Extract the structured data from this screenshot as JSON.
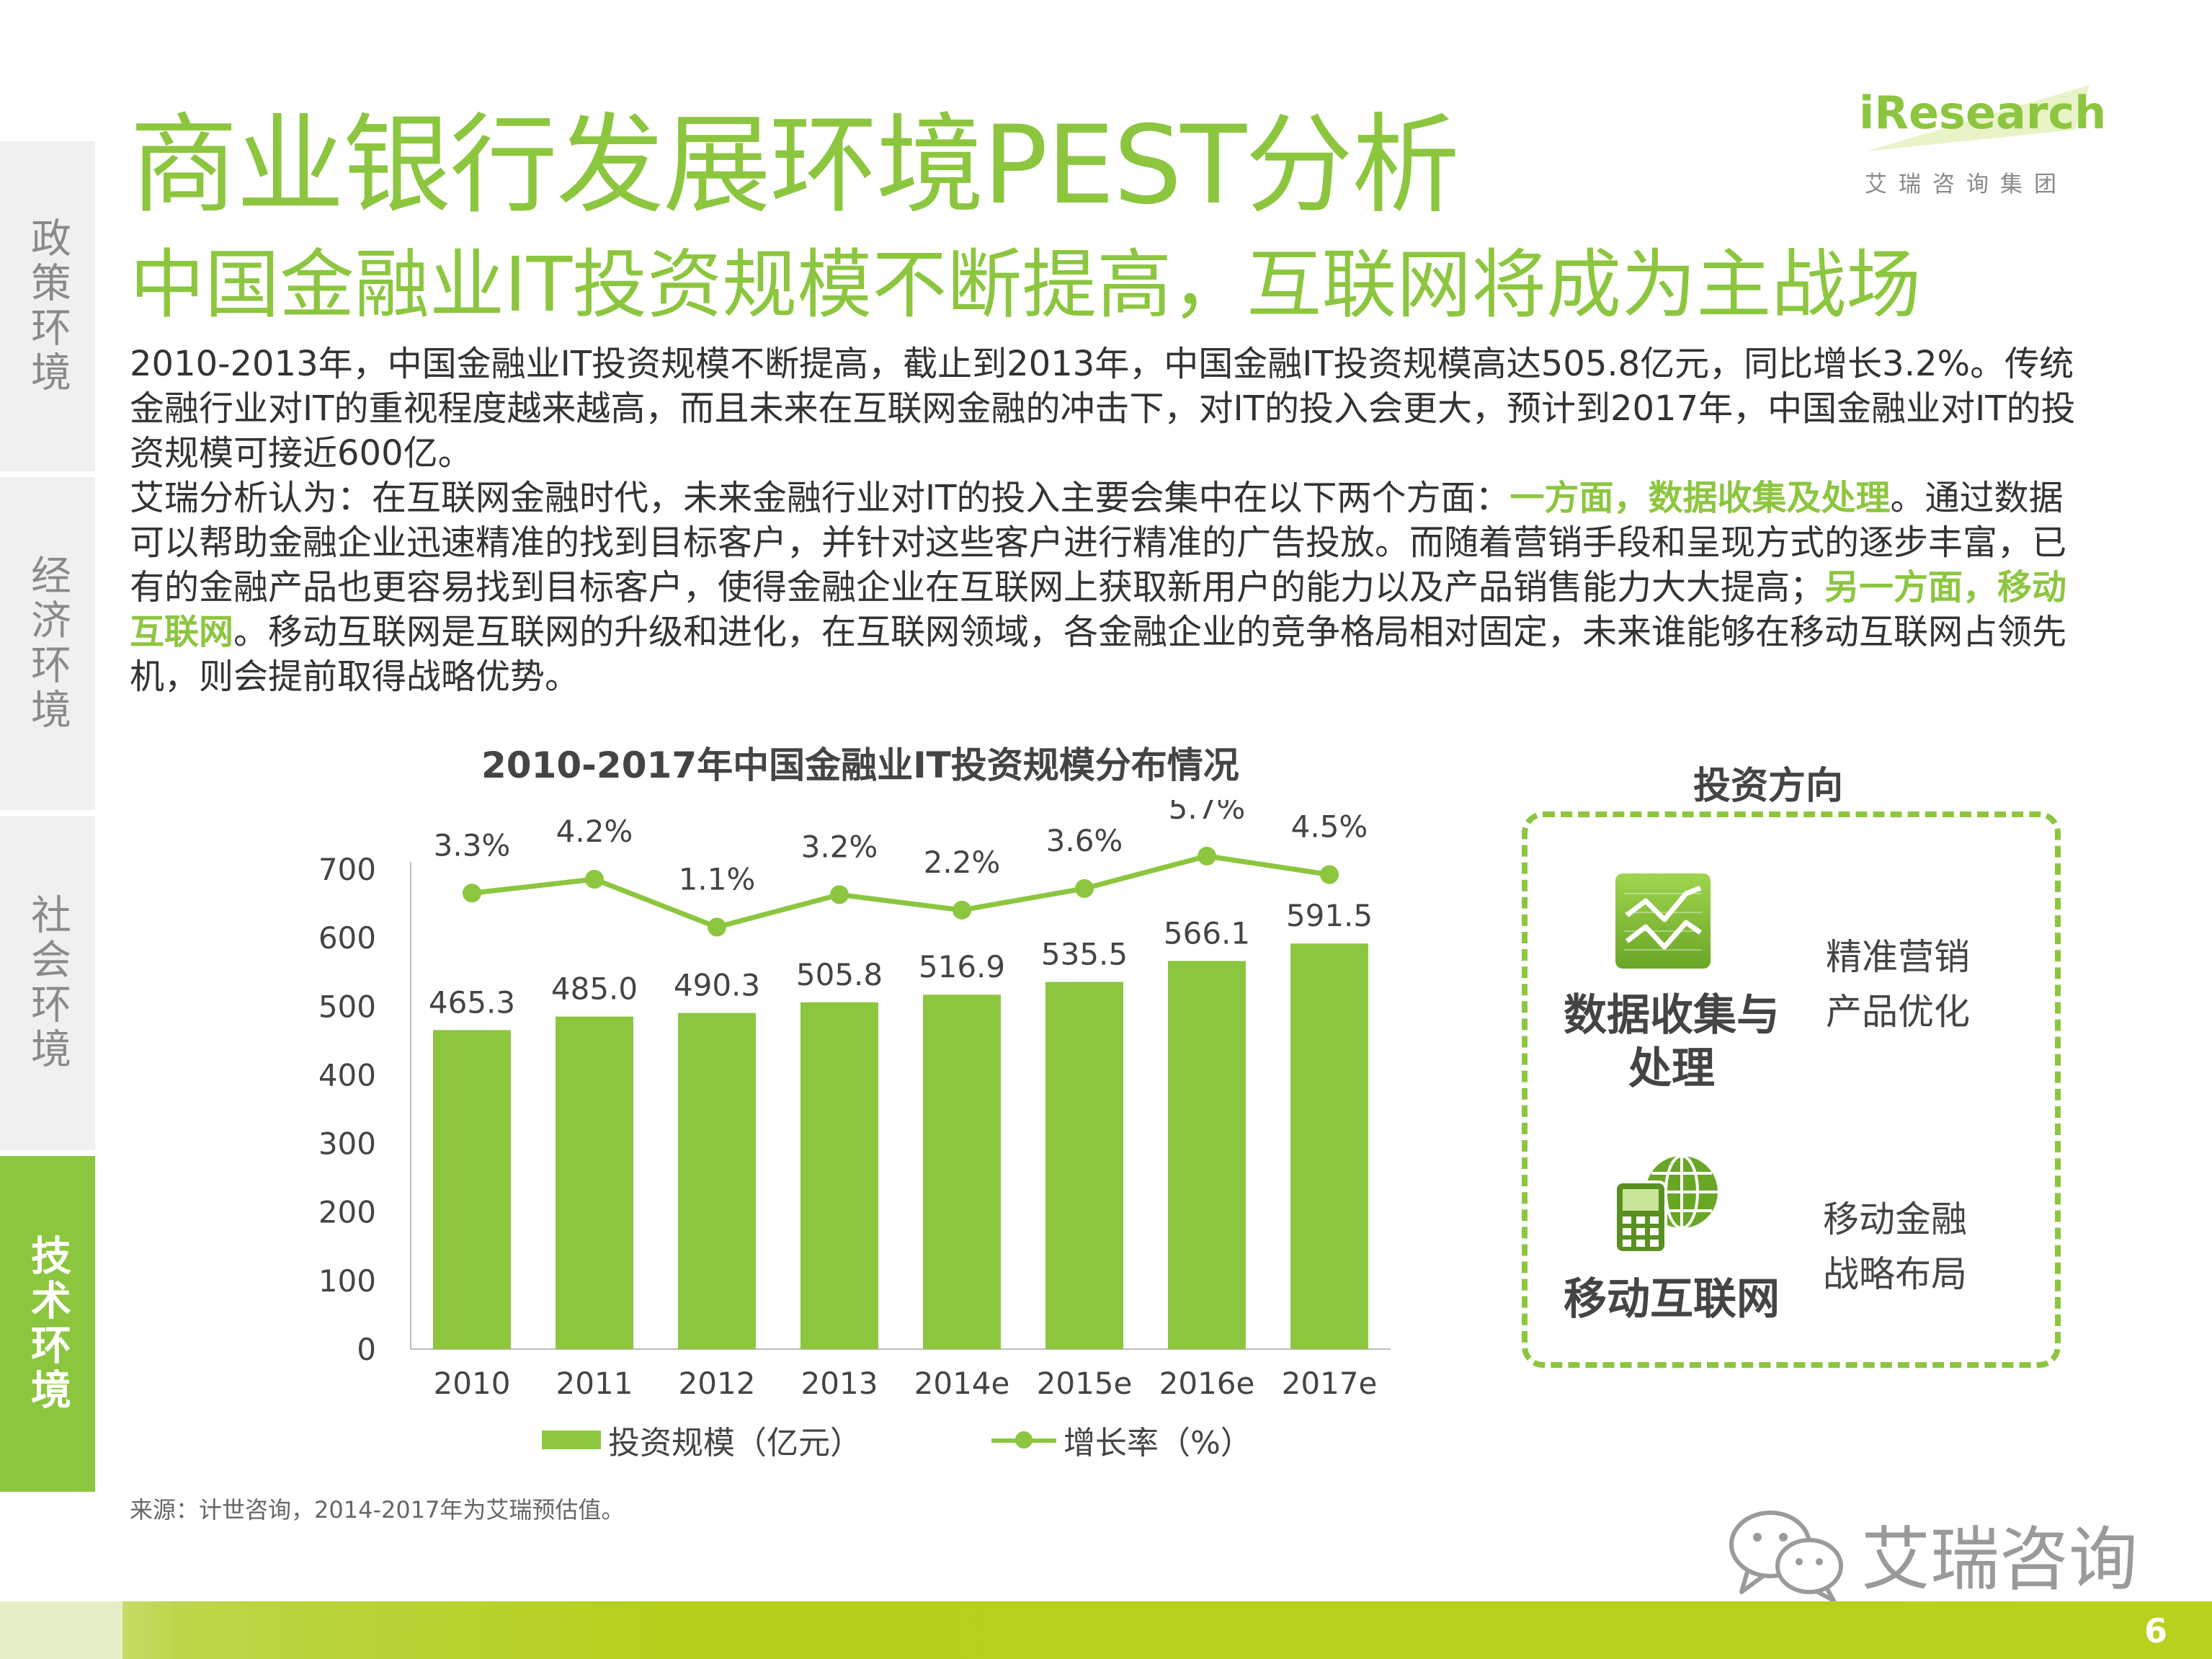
{
  "side_tabs": [
    {
      "label": "政策环境"
    },
    {
      "label": "经济环境"
    },
    {
      "label": "社会环境"
    },
    {
      "label": "技术环境"
    }
  ],
  "header": {
    "title": "商业银行发展环境PEST分析",
    "subtitle": "中国金融业IT投资规模不断提高，互联网将成为主战场"
  },
  "logo": {
    "brand": "iResearch",
    "brand_cn": "艾瑞咨询集团"
  },
  "body": {
    "p1": "2010-2013年，中国金融业IT投资规模不断提高，截止到2013年，中国金融IT投资规模高达505.8亿元，同比增长3.2%。传统金融行业对IT的重视程度越来越高，而且未来在互联网金融的冲击下，对IT的投入会更大，预计到2017年，中国金融业对IT的投资规模可接近600亿。",
    "p2_a": "艾瑞分析认为：在互联网金融时代，未来金融行业对IT的投入主要会集中在以下两个方面：",
    "p2_hl1": "一方面，数据收集及处理",
    "p2_b": "。通过数据可以帮助金融企业迅速精准的找到目标客户，并针对这些客户进行精准的广告投放。而随着营销手段和呈现方式的逐步丰富，已有的金融产品也更容易找到目标客户，使得金融企业在互联网上获取新用户的能力以及产品销售能力大大提高；",
    "p2_hl2": "另一方面，移动互联网",
    "p2_c": "。移动互联网是互联网的升级和进化，在互联网领域，各金融企业的竞争格局相对固定，未来谁能够在移动互联网占领先机，则会提前取得战略优势。"
  },
  "chart_data": {
    "type": "bar",
    "title": "2010-2017年中国金融业IT投资规模分布情况",
    "categories": [
      "2010",
      "2011",
      "2012",
      "2013",
      "2014e",
      "2015e",
      "2016e",
      "2017e"
    ],
    "series": [
      {
        "name": "投资规模（亿元）",
        "type": "bar",
        "values": [
          465.3,
          485.0,
          490.3,
          505.8,
          516.9,
          535.5,
          566.1,
          591.5
        ],
        "labels": [
          "465.3",
          "485.0",
          "490.3",
          "505.8",
          "516.9",
          "535.5",
          "566.1",
          "591.5"
        ]
      },
      {
        "name": "增长率（%）",
        "type": "line",
        "values": [
          3.3,
          4.2,
          1.1,
          3.2,
          2.2,
          3.6,
          5.7,
          4.5
        ],
        "labels": [
          "3.3%",
          "4.2%",
          "1.1%",
          "3.2%",
          "2.2%",
          "3.6%",
          "5.7%",
          "4.5%"
        ]
      }
    ],
    "yticks": [
      "0",
      "100",
      "200",
      "300",
      "400",
      "500",
      "600",
      "700"
    ],
    "ylim": [
      0,
      700
    ],
    "legend_position": "bottom",
    "grid": false,
    "colors": {
      "bar": "#8cc63f",
      "line": "#8cc63f"
    }
  },
  "investment": {
    "title": "投资方向",
    "items": [
      {
        "label": "数据收集与处理",
        "notes": [
          "精准营销",
          "产品优化"
        ],
        "icon": "chart-trend-icon"
      },
      {
        "label": "移动互联网",
        "notes": [
          "移动金融",
          "战略布局"
        ],
        "icon": "mobile-globe-icon"
      }
    ]
  },
  "source": "来源：计世咨询，2014-2017年为艾瑞预估值。",
  "wechat": {
    "text": "艾瑞咨询"
  },
  "page_number": "6",
  "colors": {
    "accent": "#8cc63f",
    "footer": "#b5cf1c",
    "text": "#333333"
  }
}
